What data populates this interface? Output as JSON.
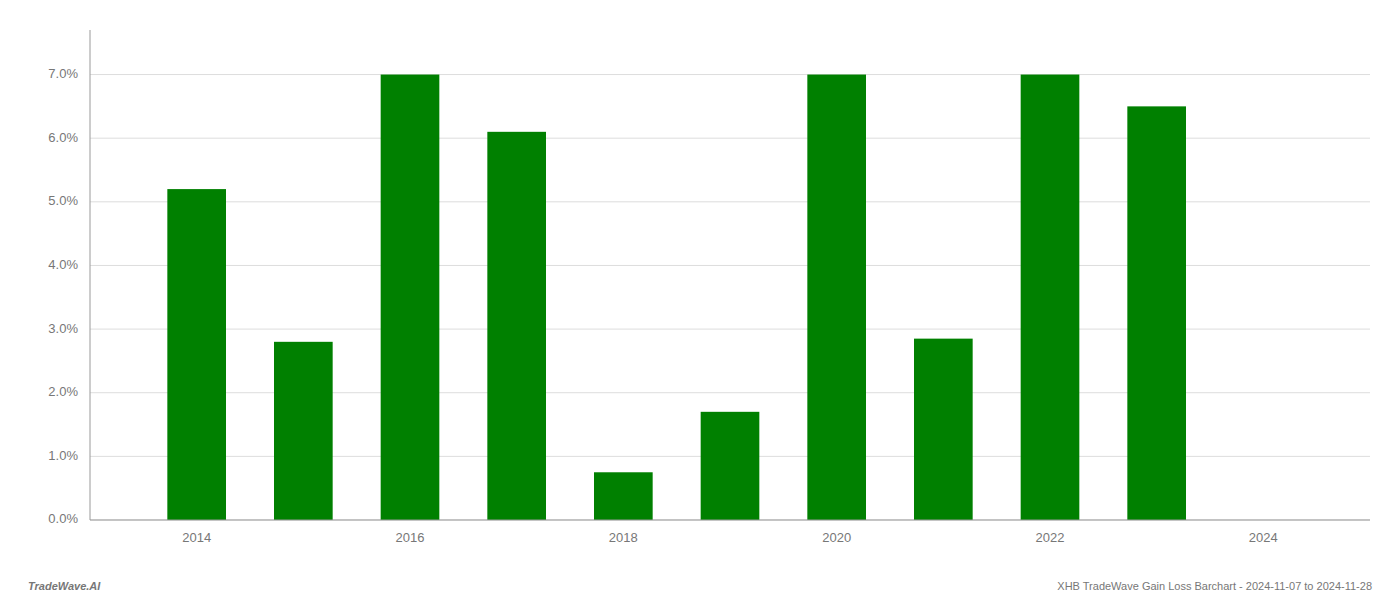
{
  "chart_data": {
    "type": "bar",
    "x": [
      2014,
      2015,
      2016,
      2017,
      2018,
      2019,
      2020,
      2021,
      2022,
      2023
    ],
    "values": [
      0.052,
      0.028,
      0.07,
      0.061,
      0.0075,
      0.017,
      0.07,
      0.0285,
      0.07,
      0.065
    ],
    "color": "#008000",
    "xlim": [
      2013.0,
      2025.0
    ],
    "xticks": [
      2014,
      2016,
      2018,
      2020,
      2022,
      2024
    ],
    "ylim": [
      0.0,
      0.077
    ],
    "yticks": [
      {
        "value": 0.0,
        "label": "0.0%"
      },
      {
        "value": 0.01,
        "label": "1.0%"
      },
      {
        "value": 0.02,
        "label": "2.0%"
      },
      {
        "value": 0.03,
        "label": "3.0%"
      },
      {
        "value": 0.04,
        "label": "4.0%"
      },
      {
        "value": 0.05,
        "label": "5.0%"
      },
      {
        "value": 0.06,
        "label": "6.0%"
      },
      {
        "value": 0.07,
        "label": "7.0%"
      }
    ],
    "grid": true,
    "annotations": [
      "TradeWave.AI",
      "XHB TradeWave Gain Loss Barchart - 2024-11-07 to 2024-11-28"
    ]
  }
}
